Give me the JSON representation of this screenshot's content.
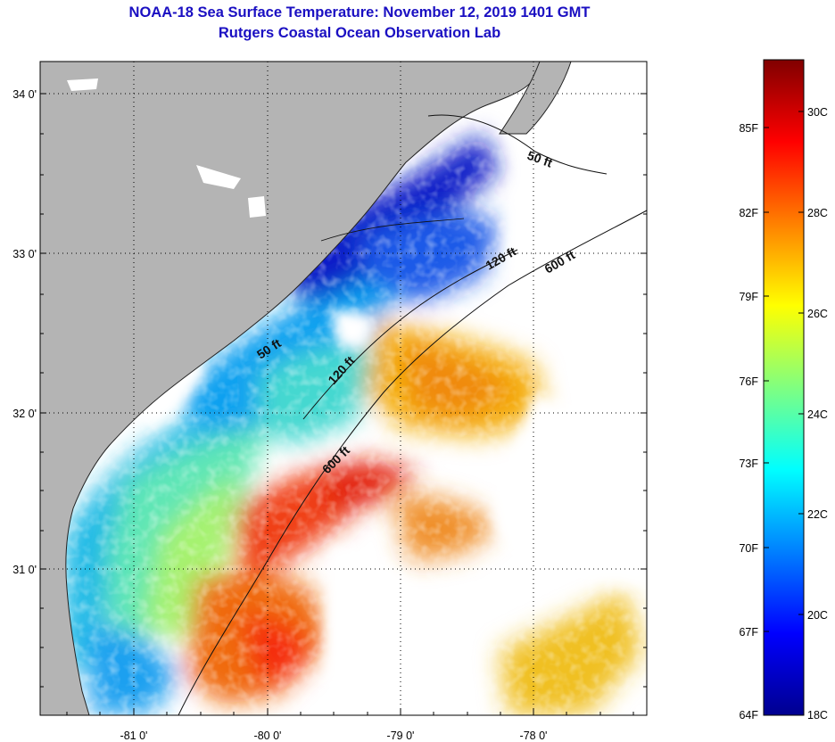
{
  "title": {
    "line1": "NOAA-18 Sea Surface Temperature:  November 12, 2019 1401 GMT",
    "line2": "Rutgers Coastal Ocean Observation Lab"
  },
  "map": {
    "lat_labels": [
      "34 0'",
      "33 0'",
      "32 0'",
      "31 0'"
    ],
    "lon_labels": [
      "-81 0'",
      "-80 0'",
      "-79 0'",
      "-78 0'"
    ],
    "isobaths": [
      {
        "label": "50 ft"
      },
      {
        "label": "50 ft"
      },
      {
        "label": "120 ft"
      },
      {
        "label": "120 ft"
      },
      {
        "label": "600 ft"
      },
      {
        "label": "600 ft"
      }
    ]
  },
  "colorbar": {
    "fahrenheit_ticks": [
      "85F",
      "82F",
      "79F",
      "76F",
      "73F",
      "70F",
      "67F",
      "64F"
    ],
    "celsius_ticks": [
      "30C",
      "28C",
      "26C",
      "24C",
      "22C",
      "20C",
      "18C"
    ],
    "range_c": [
      18,
      31
    ],
    "colors": [
      "#00008f",
      "#0000ff",
      "#0080ff",
      "#00ffff",
      "#80ff80",
      "#ffff00",
      "#ff8000",
      "#ff0000",
      "#800000"
    ]
  },
  "colors": {
    "land": "#b4b4b4",
    "title": "#1a0fc2",
    "nodata": "#ffffff"
  }
}
